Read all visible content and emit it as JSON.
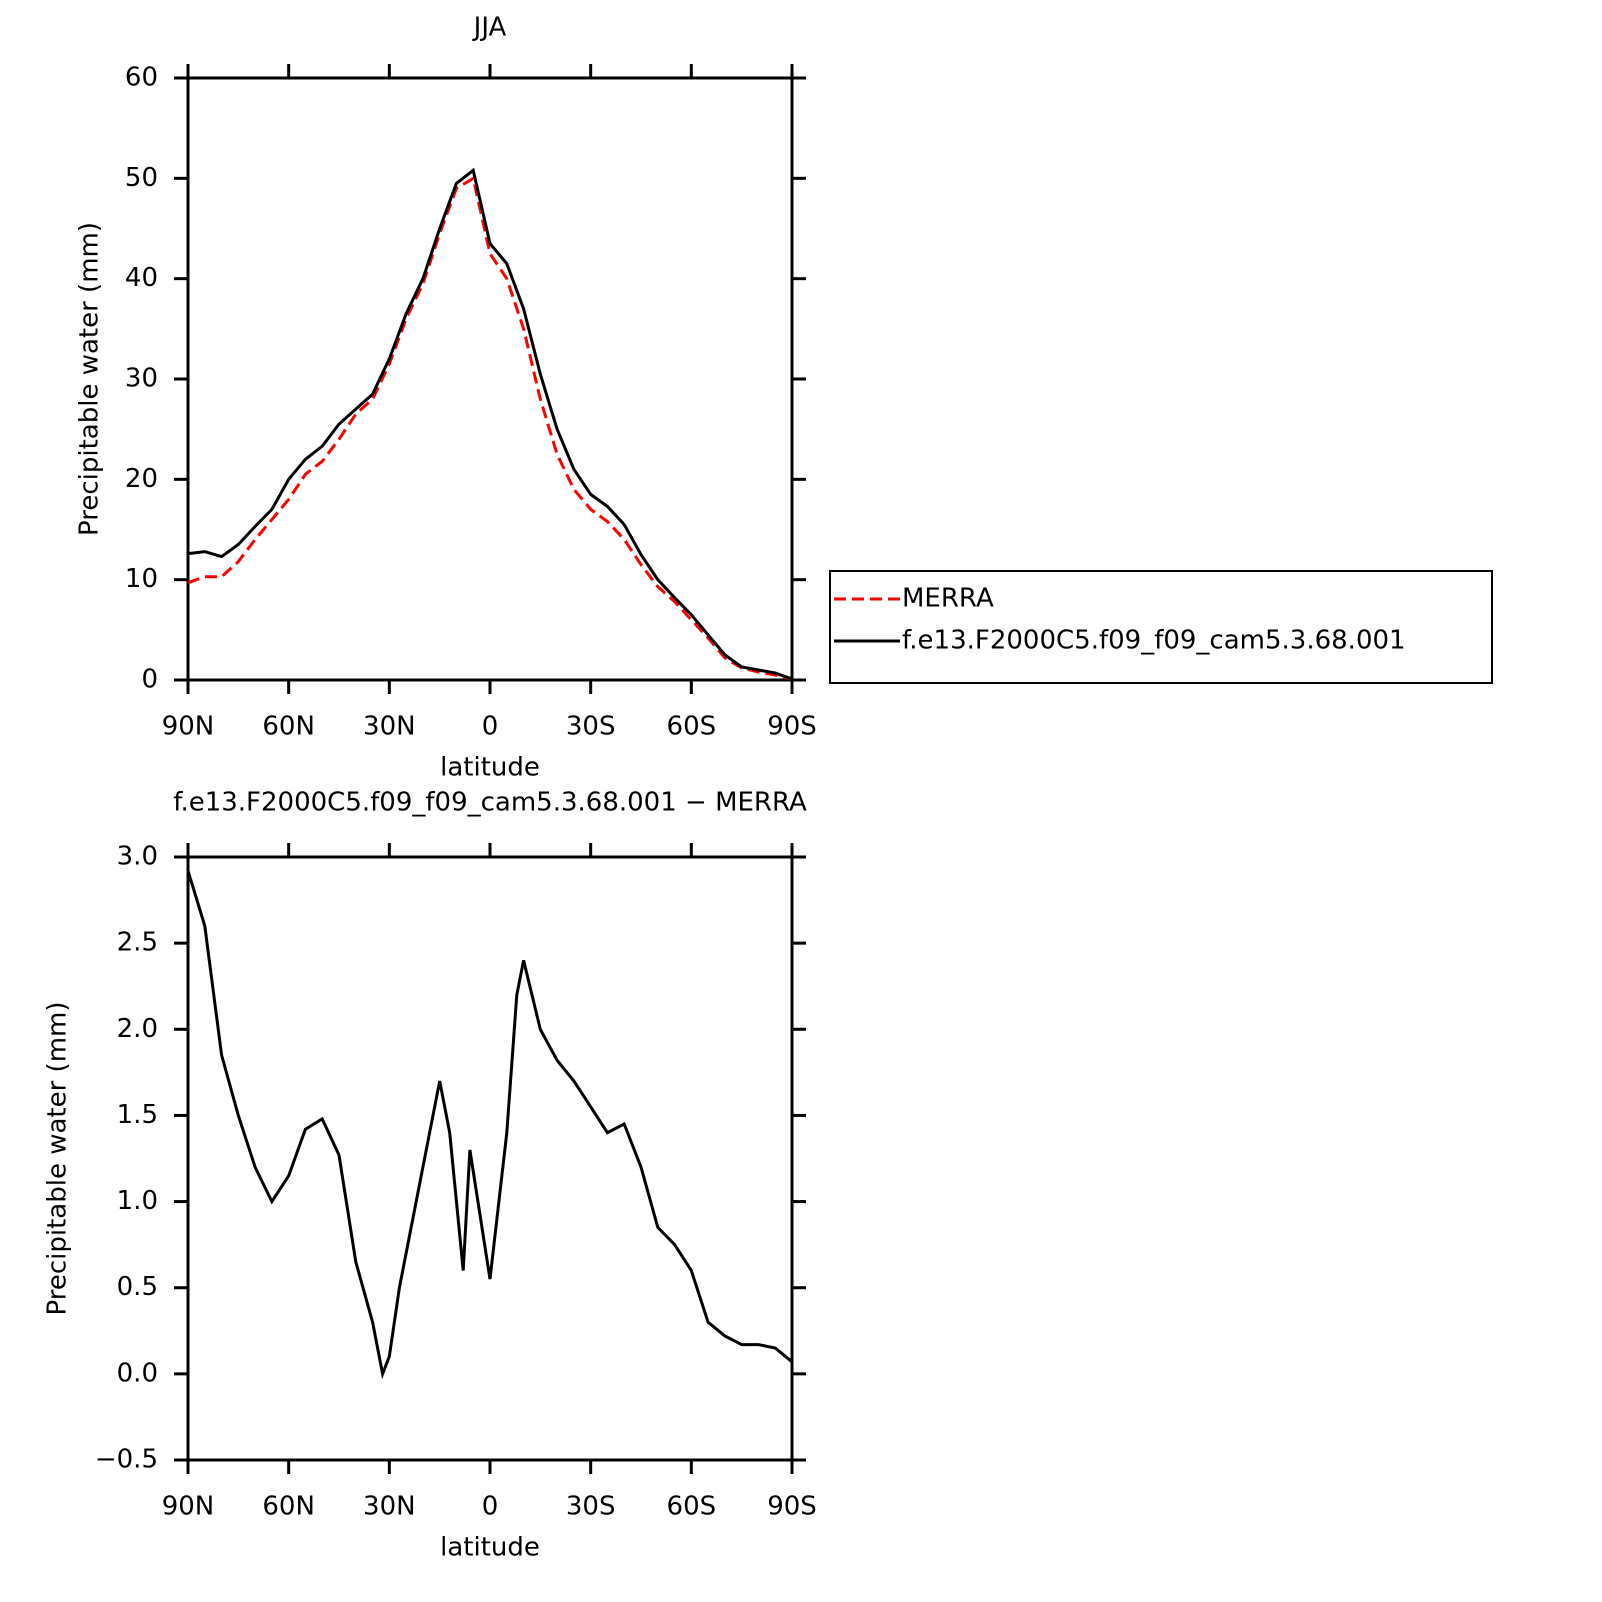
{
  "chart_data": [
    {
      "type": "line",
      "title": "JJA",
      "xlabel": "latitude",
      "ylabel": "Precipitable water (mm)",
      "x": [
        90,
        85,
        80,
        75,
        70,
        65,
        60,
        55,
        50,
        45,
        40,
        35,
        30,
        25,
        20,
        15,
        10,
        5,
        0,
        -5,
        -10,
        -15,
        -20,
        -25,
        -30,
        -35,
        -40,
        -45,
        -50,
        -55,
        -60,
        -65,
        -70,
        -75,
        -80,
        -85,
        -90
      ],
      "series": [
        {
          "name": "MERRA",
          "color": "#ff0000",
          "line_style": "dashed",
          "values": [
            9.7,
            10.3,
            10.3,
            11.8,
            14,
            16,
            18,
            20.5,
            21.8,
            24,
            26.5,
            28,
            31.5,
            36,
            39.5,
            44.5,
            49,
            50,
            42.5,
            40,
            35,
            28,
            22.5,
            19,
            17,
            15.8,
            14,
            11.5,
            9.3,
            7.8,
            6,
            4.2,
            2.2,
            1.2,
            0.8,
            0.5,
            0.1
          ]
        },
        {
          "name": "f.e13.F2000C5.f09_f09_cam5.3.68.001",
          "color": "#000000",
          "line_style": "solid",
          "values": [
            12.6,
            12.8,
            12.3,
            13.5,
            15.3,
            17,
            20,
            22,
            23.3,
            25.5,
            27,
            28.5,
            32,
            36.5,
            40,
            45,
            49.5,
            50.8,
            43.5,
            41.5,
            37,
            30.5,
            25,
            21,
            18.5,
            17.3,
            15.5,
            12.5,
            10,
            8.2,
            6.5,
            4.5,
            2.5,
            1.3,
            1,
            0.7,
            0.1
          ]
        }
      ],
      "xlim": [
        90,
        -90
      ],
      "xticks": [
        {
          "value": 90,
          "label": "90N"
        },
        {
          "value": 60,
          "label": "60N"
        },
        {
          "value": 30,
          "label": "30N"
        },
        0,
        {
          "value": -30,
          "label": "30S"
        },
        {
          "value": -60,
          "label": "60S"
        },
        {
          "value": -90,
          "label": "90S"
        }
      ],
      "ylim": [
        0,
        60
      ],
      "yticks": [
        0,
        10,
        20,
        30,
        40,
        50,
        60
      ],
      "legend": "right"
    },
    {
      "type": "line",
      "title": "f.e13.F2000C5.f09_f09_cam5.3.68.001 − MERRA",
      "xlabel": "latitude",
      "ylabel": "Precipitable water (mm)",
      "x": [
        90,
        85,
        80,
        75,
        70,
        65,
        60,
        55,
        50,
        45,
        40,
        35,
        32,
        30,
        27,
        25,
        20,
        15,
        12,
        8,
        6,
        0,
        -5,
        -8,
        -10,
        -15,
        -20,
        -25,
        -30,
        -35,
        -40,
        -45,
        -50,
        -55,
        -60,
        -65,
        -70,
        -75,
        -80,
        -85,
        -90
      ],
      "series": [
        {
          "color": "#000000",
          "line_style": "solid",
          "values": [
            2.92,
            2.6,
            1.85,
            1.5,
            1.2,
            1.0,
            1.15,
            1.42,
            1.48,
            1.27,
            0.65,
            0.3,
            0.0,
            0.1,
            0.5,
            0.7,
            1.2,
            1.7,
            1.4,
            0.6,
            1.3,
            0.55,
            1.4,
            2.2,
            2.4,
            2.0,
            1.82,
            1.7,
            1.55,
            1.4,
            1.45,
            1.2,
            0.85,
            0.75,
            0.6,
            0.3,
            0.22,
            0.17,
            0.17,
            0.15,
            0.07
          ]
        }
      ],
      "xlim": [
        90,
        -90
      ],
      "xticks": [
        {
          "value": 90,
          "label": "90N"
        },
        {
          "value": 60,
          "label": "60N"
        },
        {
          "value": 30,
          "label": "30N"
        },
        0,
        {
          "value": -30,
          "label": "30S"
        },
        {
          "value": -60,
          "label": "60S"
        },
        {
          "value": -90,
          "label": "90S"
        }
      ],
      "ylim": [
        -0.5,
        3
      ],
      "yticks": [
        {
          "value": -0.5,
          "label": "−0.5"
        },
        {
          "value": 0,
          "label": "0.0"
        },
        0.5,
        {
          "value": 1,
          "label": "1.0"
        },
        1.5,
        {
          "value": 2,
          "label": "2.0"
        },
        2.5,
        {
          "value": 3,
          "label": "3.0"
        }
      ]
    }
  ]
}
